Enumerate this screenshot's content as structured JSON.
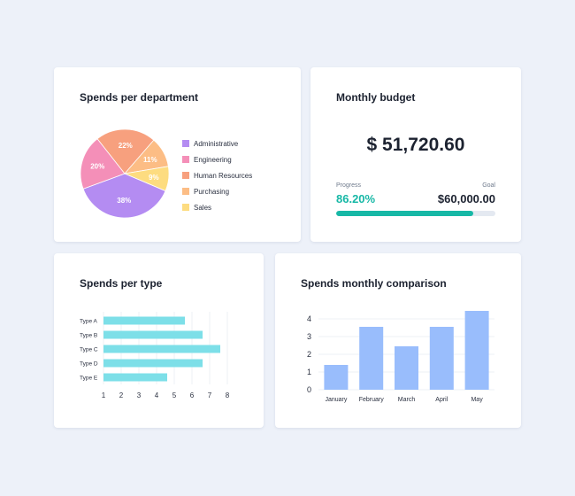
{
  "colors": {
    "page_bg": "#edf1f9",
    "card_bg": "#ffffff",
    "teal": "#17b8a6",
    "horizontal_bar": "#7ddfe8",
    "vertical_bar": "#99bdfc"
  },
  "department_card": {
    "title": "Spends per department",
    "legend": [
      {
        "label": "Administrative",
        "color": "#b48cf2"
      },
      {
        "label": "Engineering",
        "color": "#f48fb8"
      },
      {
        "label": "Human Resources",
        "color": "#f7a07e"
      },
      {
        "label": "Purchasing",
        "color": "#fcbd85"
      },
      {
        "label": "Sales",
        "color": "#fddc80"
      }
    ]
  },
  "budget_card": {
    "title": "Monthly budget",
    "amount": "$ 51,720.60",
    "progress_label": "Progress",
    "progress_value": "86.20%",
    "progress_fraction": 0.862,
    "goal_label": "Goal",
    "goal_value": "$60,000.00"
  },
  "type_card": {
    "title": "Spends per type"
  },
  "monthly_card": {
    "title": "Spends monthly comparison"
  },
  "chart_data": [
    {
      "type": "pie",
      "title": "Spends per department",
      "slices": [
        {
          "name": "Administrative",
          "value": 38,
          "label": "38%",
          "color": "#b48cf2"
        },
        {
          "name": "Engineering",
          "value": 20,
          "label": "20%",
          "color": "#f48fb8"
        },
        {
          "name": "Human Resources",
          "value": 22,
          "label": "22%",
          "color": "#f7a07e"
        },
        {
          "name": "Purchasing",
          "value": 11,
          "label": "11%",
          "color": "#fcbd85"
        },
        {
          "name": "Sales",
          "value": 9,
          "label": "9%",
          "color": "#fddc80"
        }
      ],
      "legend": "right"
    },
    {
      "type": "bar",
      "orientation": "horizontal",
      "title": "Spends per type",
      "categories": [
        "Type A",
        "Type B",
        "Type C",
        "Type D",
        "Type E"
      ],
      "values": [
        5.6,
        6.6,
        7.6,
        6.6,
        4.6
      ],
      "xlim": [
        1,
        8
      ],
      "xticks": [
        "1",
        "2",
        "3",
        "4",
        "5",
        "6",
        "7",
        "8"
      ],
      "grid": true,
      "color": "#7ddfe8"
    },
    {
      "type": "bar",
      "orientation": "vertical",
      "title": "Spends monthly comparison",
      "categories": [
        "January",
        "February",
        "March",
        "April",
        "May"
      ],
      "values": [
        1.4,
        3.55,
        2.45,
        3.55,
        4.45
      ],
      "ylim": [
        0,
        4.5
      ],
      "yticks": [
        "0",
        "1",
        "2",
        "3",
        "4"
      ],
      "grid": true,
      "color": "#99bdfc"
    }
  ]
}
